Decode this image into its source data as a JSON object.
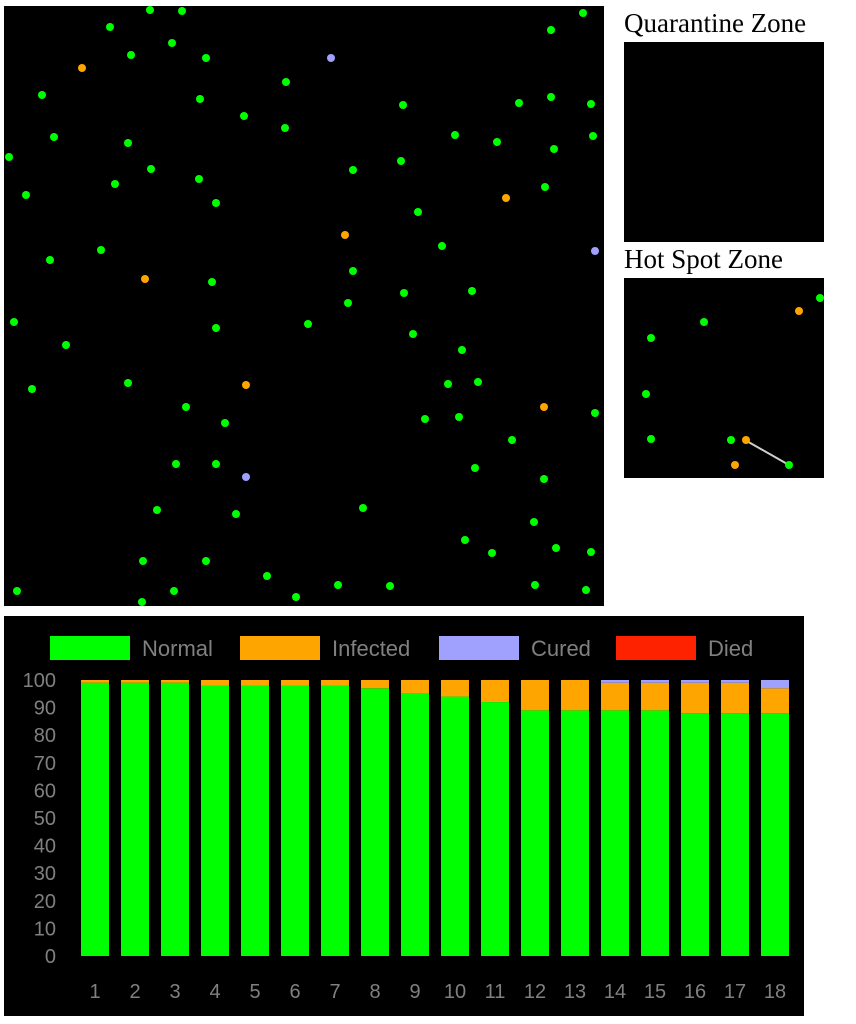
{
  "colors": {
    "normal": "#00ff00",
    "infected": "#ffa500",
    "cured": "#a0a0ff",
    "died": "#ff2200",
    "background": "#000000",
    "label": "#808080"
  },
  "zones": {
    "quarantine_title": "Quarantine Zone",
    "hotspot_title": "Hot Spot Zone"
  },
  "chart_data": {
    "type": "bar",
    "stacked": true,
    "legend_position": "top",
    "grid": false,
    "ylim": [
      0,
      100
    ],
    "yticks": [
      "0",
      "10",
      "20",
      "30",
      "40",
      "50",
      "60",
      "70",
      "80",
      "90",
      "100"
    ],
    "categories": [
      "1",
      "2",
      "3",
      "4",
      "5",
      "6",
      "7",
      "8",
      "9",
      "10",
      "11",
      "12",
      "13",
      "14",
      "15",
      "16",
      "17",
      "18"
    ],
    "series": [
      {
        "name": "Normal",
        "color": "#00ff00",
        "values": [
          99,
          99,
          99,
          98,
          98,
          98,
          98,
          97,
          95,
          94,
          92,
          89,
          89,
          89,
          89,
          88,
          88,
          88
        ]
      },
      {
        "name": "Infected",
        "color": "#ffa500",
        "values": [
          1,
          1,
          1,
          2,
          2,
          2,
          2,
          3,
          5,
          6,
          8,
          11,
          11,
          10,
          10,
          11,
          11,
          9
        ]
      },
      {
        "name": "Cured",
        "color": "#a0a0ff",
        "values": [
          0,
          0,
          0,
          0,
          0,
          0,
          0,
          0,
          0,
          0,
          0,
          0,
          0,
          1,
          1,
          1,
          1,
          3
        ]
      },
      {
        "name": "Died",
        "color": "#ff2200",
        "values": [
          0,
          0,
          0,
          0,
          0,
          0,
          0,
          0,
          0,
          0,
          0,
          0,
          0,
          0,
          0,
          0,
          0,
          0
        ]
      }
    ]
  }
}
